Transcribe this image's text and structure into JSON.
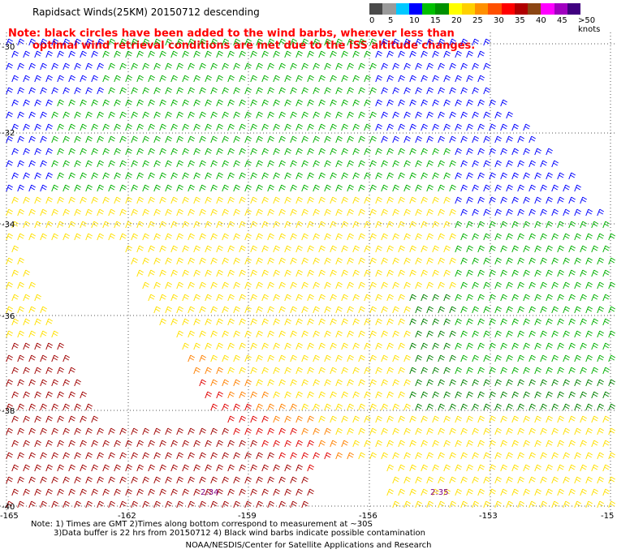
{
  "title": "Rapidsact Winds(25KM) 20150712 descending",
  "note": {
    "line1": "Note: black circles have been added to the wind barbs, wherever less than",
    "line2": "optimal wind retrieval conditions are met due to the ISS altitude changes."
  },
  "scale": {
    "labels": [
      "0",
      "5",
      "10",
      "15",
      "20",
      "25",
      "30",
      "35",
      "40",
      "45",
      ">50 knots"
    ],
    "colors": [
      "#4a4a4a",
      "#9a9a9a",
      "#00c8ff",
      "#0000ff",
      "#00c000",
      "#009000",
      "#ffff00",
      "#ffd000",
      "#ff9000",
      "#ff5000",
      "#ff0000",
      "#b00000",
      "#8b4513",
      "#ff00ff",
      "#a000c0",
      "#400080"
    ]
  },
  "axes": {
    "lat_labels": [
      "-30",
      "-32",
      "-34",
      "-36",
      "-38",
      "-40"
    ],
    "lon_labels": [
      "-165",
      "-162",
      "-159",
      "-156",
      "-153",
      "-15"
    ]
  },
  "pass_times": [
    "2:34",
    "2:35"
  ],
  "footnote": {
    "line1": "Note: 1) Times are GMT 2)Times along bottom correspond to measurement at ~30S",
    "line2": "3)Data buffer is 22 hrs from 20150712 4) Black wind barbs indicate possible contamination"
  },
  "credit": "NOAA/NESDIS/Center for Satellite Applications and Research",
  "wind_field": {
    "speed_colors": {
      "blue": "#0000ff",
      "green": "#00b000",
      "dark_green": "#008000",
      "yellow": "#ffe000",
      "orange": "#ff8000",
      "red": "#e00000",
      "dark_red": "#a00000"
    }
  }
}
